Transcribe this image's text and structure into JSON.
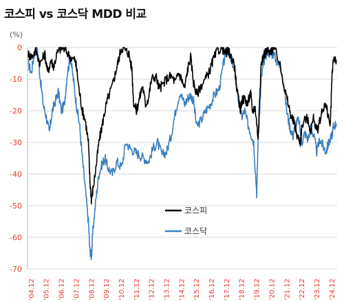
{
  "title": "코스피 vs 코스닥 MDD 비교",
  "unit_label": "(%)",
  "chart_data": {
    "type": "line",
    "title": "코스피 vs 코스닥 MDD 비교",
    "ylabel": "(%)",
    "xlabel": "",
    "ylim": [
      -70,
      0
    ],
    "y_ticks": [
      0,
      -10,
      -20,
      -30,
      -40,
      -50,
      -60,
      -70
    ],
    "y_tick_labels": [
      "0",
      "-10",
      "-20",
      "-30",
      "-40",
      "-50",
      "-60",
      "-70"
    ],
    "x_tick_labels": [
      "'04.12",
      "'05.12",
      "'06.12",
      "'07.12",
      "'08.12",
      "'09.12",
      "'10.12",
      "'11.12",
      "'12.12",
      "'13.12",
      "'14.12",
      "'15.12",
      "'16.12",
      "'17.12",
      "'18.12",
      "'19.12",
      "'20.12",
      "'21.12",
      "'22.12",
      "'23.12",
      "'24.12"
    ],
    "grid": true,
    "legend_position": "center-right",
    "series": [
      {
        "name": "코스피",
        "color": "#000000",
        "x": [
          2004.7,
          2004.9,
          2005.2,
          2005.5,
          2005.8,
          2006.0,
          2006.2,
          2006.4,
          2006.6,
          2006.9,
          2007.2,
          2007.5,
          2007.8,
          2007.9,
          2008.1,
          2008.3,
          2008.5,
          2008.7,
          2008.8,
          2008.9,
          2009.0,
          2009.2,
          2009.4,
          2009.6,
          2009.8,
          2010.0,
          2010.3,
          2010.5,
          2010.7,
          2010.9,
          2011.2,
          2011.4,
          2011.6,
          2011.7,
          2011.9,
          2012.1,
          2012.3,
          2012.5,
          2012.7,
          2012.9,
          2013.2,
          2013.4,
          2013.6,
          2013.9,
          2014.2,
          2014.5,
          2014.7,
          2014.9,
          2015.1,
          2015.3,
          2015.5,
          2015.7,
          2015.9,
          2016.2,
          2016.5,
          2016.8,
          2017.0,
          2017.3,
          2017.6,
          2017.8,
          2018.0,
          2018.2,
          2018.4,
          2018.6,
          2018.8,
          2018.9,
          2019.1,
          2019.3,
          2019.5,
          2019.6,
          2019.8,
          2020.0,
          2020.1,
          2020.2,
          2020.4,
          2020.6,
          2020.8,
          2020.9,
          2021.0,
          2021.3,
          2021.6,
          2021.8,
          2022.0,
          2022.2,
          2022.4,
          2022.6,
          2022.8,
          2022.9,
          2023.2,
          2023.5,
          2023.7,
          2023.9,
          2024.2,
          2024.4,
          2024.6,
          2024.8,
          2024.9,
          2025.0,
          2025.2
        ],
        "values": [
          -2,
          -3,
          -1,
          -5,
          -2,
          -8,
          -4,
          -6,
          -2,
          0,
          -1,
          -3,
          -4,
          -6,
          -14,
          -20,
          -23,
          -30,
          -42,
          -48,
          -45,
          -38,
          -30,
          -25,
          -20,
          -16,
          -12,
          -8,
          -4,
          0,
          -1,
          -2,
          -7,
          -17,
          -20,
          -16,
          -12,
          -18,
          -16,
          -10,
          -9,
          -13,
          -12,
          -10,
          -9,
          -11,
          -8,
          -10,
          -13,
          -7,
          -3,
          -11,
          -15,
          -12,
          -10,
          -7,
          -4,
          -1,
          0,
          -2,
          -1,
          -3,
          -5,
          -14,
          -20,
          -17,
          -16,
          -18,
          -14,
          -20,
          -19,
          -29,
          -15,
          -5,
          -2,
          -1,
          -2,
          -1,
          0,
          -3,
          -9,
          -14,
          -18,
          -22,
          -24,
          -28,
          -30,
          -25,
          -22,
          -26,
          -22,
          -27,
          -21,
          -18,
          -20,
          -25,
          -10,
          -3,
          -4
        ]
      },
      {
        "name": "코스닥",
        "color": "#3a7ebf",
        "x": [
          2004.7,
          2004.9,
          2005.1,
          2005.3,
          2005.5,
          2005.7,
          2005.9,
          2006.1,
          2006.3,
          2006.5,
          2006.7,
          2006.9,
          2007.1,
          2007.3,
          2007.5,
          2007.7,
          2007.9,
          2008.1,
          2008.3,
          2008.5,
          2008.7,
          2008.8,
          2008.9,
          2009.0,
          2009.2,
          2009.4,
          2009.6,
          2009.8,
          2010.0,
          2010.3,
          2010.6,
          2010.9,
          2011.2,
          2011.5,
          2011.8,
          2012.1,
          2012.4,
          2012.7,
          2013.0,
          2013.3,
          2013.6,
          2013.9,
          2014.2,
          2014.5,
          2014.8,
          2015.1,
          2015.3,
          2015.5,
          2015.7,
          2015.9,
          2016.2,
          2016.5,
          2016.8,
          2017.1,
          2017.4,
          2017.7,
          2017.9,
          2018.1,
          2018.3,
          2018.5,
          2018.7,
          2018.9,
          2019.1,
          2019.3,
          2019.5,
          2019.7,
          2019.9,
          2020.0,
          2020.1,
          2020.2,
          2020.4,
          2020.6,
          2020.8,
          2021.0,
          2021.3,
          2021.6,
          2021.9,
          2022.1,
          2022.3,
          2022.5,
          2022.7,
          2022.9,
          2023.1,
          2023.3,
          2023.5,
          2023.7,
          2023.9,
          2024.1,
          2024.3,
          2024.5,
          2024.7,
          2024.9,
          2025.0,
          2025.2
        ],
        "values": [
          -5,
          -8,
          -2,
          0,
          -10,
          -18,
          -22,
          -27,
          -20,
          -17,
          -14,
          -20,
          -18,
          -8,
          -3,
          -10,
          -18,
          -24,
          -35,
          -45,
          -55,
          -64,
          -66,
          -58,
          -48,
          -40,
          -37,
          -35,
          -38,
          -40,
          -36,
          -38,
          -30,
          -32,
          -33,
          -34,
          -35,
          -36,
          -32,
          -30,
          -34,
          -33,
          -28,
          -20,
          -14,
          -18,
          -16,
          -15,
          -17,
          -25,
          -23,
          -20,
          -18,
          -15,
          -13,
          -5,
          0,
          -3,
          -5,
          -10,
          -17,
          -22,
          -20,
          -24,
          -27,
          -30,
          -46,
          -28,
          -20,
          -10,
          -4,
          -1,
          -2,
          -2,
          -5,
          -8,
          -20,
          -25,
          -28,
          -24,
          -23,
          -30,
          -27,
          -29,
          -25,
          -28,
          -33,
          -29,
          -31,
          -33,
          -30,
          -28,
          -25,
          -24
        ]
      }
    ]
  }
}
